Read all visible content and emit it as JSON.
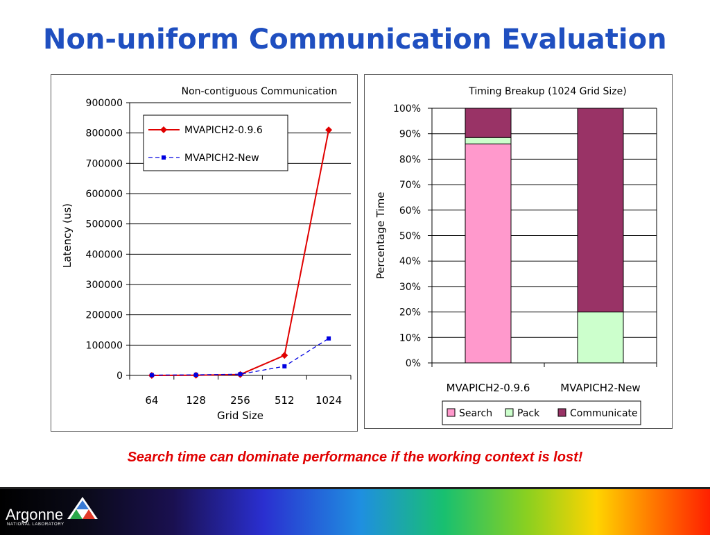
{
  "slide": {
    "title": "Non-uniform Communication Evaluation",
    "caption": "Search time can dominate performance if the working context is lost!"
  },
  "footer": {
    "logo_text": "Argonne",
    "logo_subtext": "NATIONAL LABORATORY"
  },
  "chart_data": [
    {
      "type": "line",
      "title": "Non-contiguous Communication",
      "xlabel": "Grid Size",
      "ylabel": "Latency (us)",
      "categories": [
        "64",
        "128",
        "256",
        "512",
        "1024"
      ],
      "ylim": [
        0,
        900000
      ],
      "yticks": [
        "0",
        "100000",
        "200000",
        "300000",
        "400000",
        "500000",
        "600000",
        "700000",
        "800000",
        "900000"
      ],
      "legend_position": "top-left",
      "series": [
        {
          "name": "MVAPICH2-0.9.6",
          "values": [
            0,
            500,
            3000,
            66000,
            810000
          ],
          "color": "#e00000",
          "marker": "diamond",
          "dash": "solid"
        },
        {
          "name": "MVAPICH2-New",
          "values": [
            1000,
            2000,
            4000,
            30000,
            122000
          ],
          "color": "#0000e0",
          "marker": "square",
          "dash": "dashed"
        }
      ]
    },
    {
      "type": "bar",
      "stacked": true,
      "title": "Timing Breakup (1024 Grid Size)",
      "xlabel": "",
      "ylabel": "Percentage Time",
      "categories": [
        "MVAPICH2-0.9.6",
        "MVAPICH2-New"
      ],
      "ylim": [
        0,
        100
      ],
      "yticks": [
        "0%",
        "10%",
        "20%",
        "30%",
        "40%",
        "50%",
        "60%",
        "70%",
        "80%",
        "90%",
        "100%"
      ],
      "legend_position": "bottom",
      "series": [
        {
          "name": "Search",
          "values": [
            86,
            0
          ],
          "color": "#ff99cc"
        },
        {
          "name": "Pack",
          "values": [
            2.5,
            20
          ],
          "color": "#ccffcc"
        },
        {
          "name": "Communicate",
          "values": [
            11.5,
            80
          ],
          "color": "#993366"
        }
      ]
    }
  ]
}
